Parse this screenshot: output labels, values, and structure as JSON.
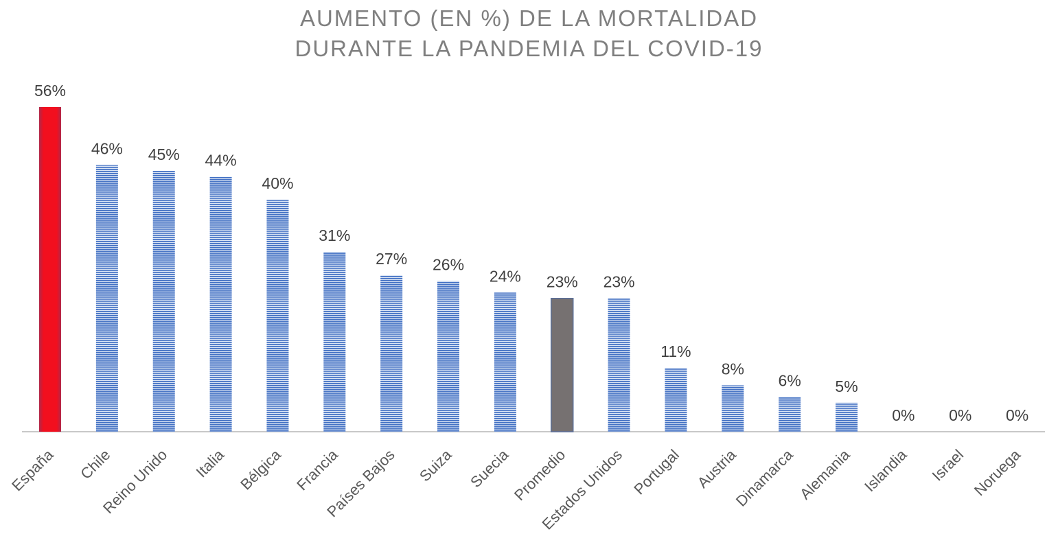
{
  "chart_data": {
    "type": "bar",
    "title_lines": [
      "AUMENTO (EN %) DE LA MORTALIDAD",
      "DURANTE LA PANDEMIA DEL COVID-19"
    ],
    "categories": [
      "España",
      "Chile",
      "Reino Unido",
      "Italia",
      "Bélgica",
      "Francia",
      "Países Bajos",
      "Suiza",
      "Suecia",
      "Promedio",
      "Estados Unidos",
      "Portugal",
      "Austria",
      "Dinamarca",
      "Alemania",
      "Islandia",
      "Israel",
      "Noruega"
    ],
    "values": [
      56,
      46,
      45,
      44,
      40,
      31,
      27,
      26,
      24,
      23,
      23,
      11,
      8,
      6,
      5,
      0,
      0,
      0
    ],
    "data_labels": [
      "56%",
      "46%",
      "45%",
      "44%",
      "40%",
      "31%",
      "27%",
      "26%",
      "24%",
      "23%",
      "23%",
      "11%",
      "8%",
      "6%",
      "5%",
      "0%",
      "0%",
      "0%"
    ],
    "ylim": [
      0,
      56
    ],
    "grid": false,
    "legend": "none",
    "colors": {
      "highlight": "#f20f1e",
      "average": "#767171",
      "default": "#4472c4",
      "stripe_light": "#dce6f5"
    },
    "bar_styles": [
      "highlight",
      "default",
      "default",
      "default",
      "default",
      "default",
      "default",
      "default",
      "default",
      "average",
      "default",
      "default",
      "default",
      "default",
      "default",
      "default",
      "default",
      "default"
    ]
  }
}
